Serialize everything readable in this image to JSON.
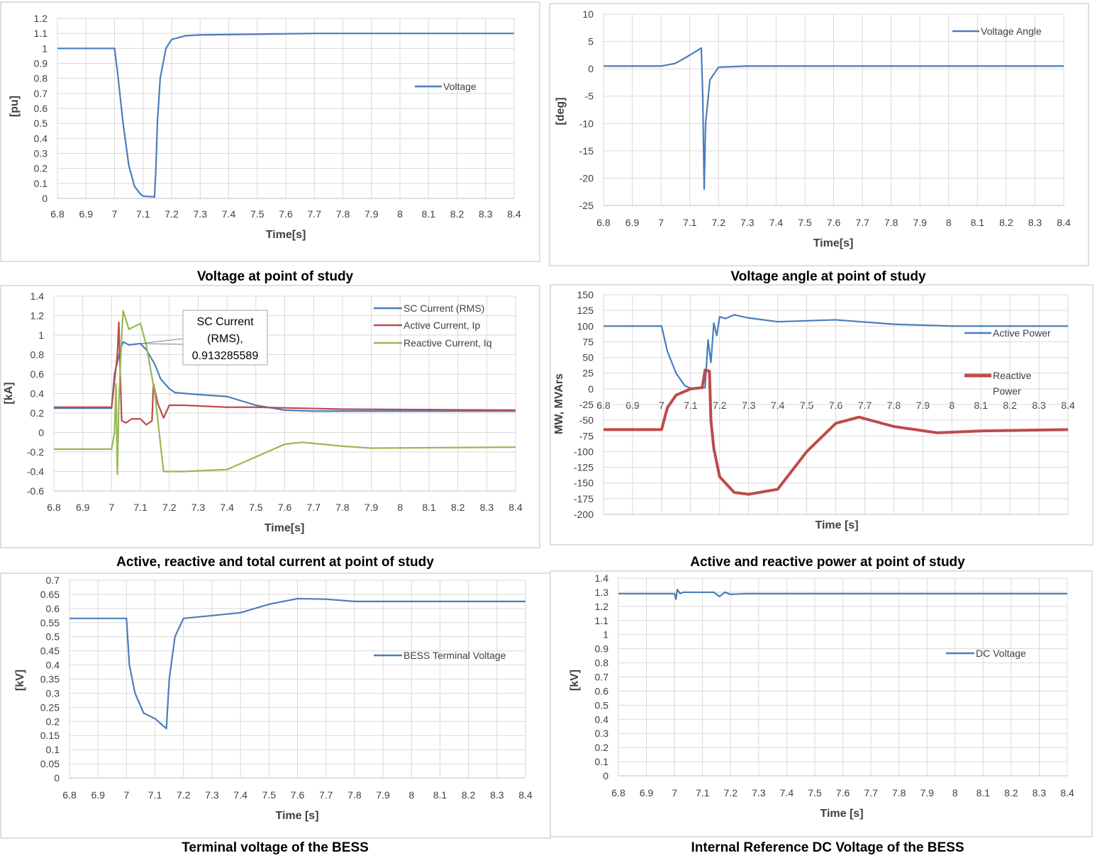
{
  "colors": {
    "blue": "#4a7ebb",
    "red": "#be4b48",
    "green": "#98b954",
    "grid": "#d9d9d9"
  },
  "chart_data": [
    {
      "type": "line",
      "caption": "Voltage at point of study",
      "xlabel": "Time[s]",
      "ylabel": "[pu]",
      "xlim": [
        6.8,
        8.4
      ],
      "xstep": 0.1,
      "ylim": [
        0,
        1.2
      ],
      "ystep": 0.1,
      "grid": true,
      "legend": "right",
      "series": [
        {
          "name": "Voltage",
          "color": "#4a7ebb",
          "points": [
            [
              6.8,
              1
            ],
            [
              7.0,
              1
            ],
            [
              7.01,
              0.85
            ],
            [
              7.03,
              0.5
            ],
            [
              7.05,
              0.22
            ],
            [
              7.07,
              0.08
            ],
            [
              7.09,
              0.03
            ],
            [
              7.1,
              0.015
            ],
            [
              7.14,
              0.01
            ],
            [
              7.145,
              0.2
            ],
            [
              7.15,
              0.5
            ],
            [
              7.16,
              0.8
            ],
            [
              7.18,
              1.0
            ],
            [
              7.2,
              1.06
            ],
            [
              7.25,
              1.085
            ],
            [
              7.3,
              1.09
            ],
            [
              7.5,
              1.095
            ],
            [
              7.7,
              1.1
            ],
            [
              8.4,
              1.1
            ]
          ]
        }
      ]
    },
    {
      "type": "line",
      "caption": "Voltage angle at point of study",
      "xlabel": "Time[s]",
      "ylabel": "[deg]",
      "xlim": [
        6.8,
        8.4
      ],
      "xstep": 0.1,
      "ylim": [
        -25,
        10
      ],
      "ystep": 5,
      "grid": true,
      "legend": "top-right",
      "series": [
        {
          "name": "Voltage Angle",
          "color": "#4a7ebb",
          "points": [
            [
              6.8,
              0.5
            ],
            [
              7.0,
              0.5
            ],
            [
              7.05,
              1
            ],
            [
              7.1,
              2.5
            ],
            [
              7.14,
              3.8
            ],
            [
              7.145,
              -5
            ],
            [
              7.15,
              -22
            ],
            [
              7.155,
              -10
            ],
            [
              7.17,
              -2
            ],
            [
              7.2,
              0.3
            ],
            [
              7.3,
              0.5
            ],
            [
              8.4,
              0.5
            ]
          ]
        }
      ]
    },
    {
      "type": "line",
      "caption": "Active, reactive and total current at point of study",
      "xlabel": "Time[s]",
      "ylabel": "[kA]",
      "xlim": [
        6.8,
        8.4
      ],
      "xstep": 0.1,
      "ylim": [
        -0.6,
        1.4
      ],
      "ystep": 0.2,
      "grid": true,
      "legend": "top-right",
      "annotation": {
        "lines": [
          "SC Current",
          "(RMS),",
          "0.913285589"
        ],
        "x": 7.1,
        "y": 0.913285589
      },
      "series": [
        {
          "name": "SC Current (RMS)",
          "color": "#4a7ebb",
          "points": [
            [
              6.8,
              0.25
            ],
            [
              7.0,
              0.25
            ],
            [
              7.01,
              0.6
            ],
            [
              7.03,
              0.85
            ],
            [
              7.04,
              0.93
            ],
            [
              7.06,
              0.9
            ],
            [
              7.1,
              0.913
            ],
            [
              7.12,
              0.85
            ],
            [
              7.15,
              0.7
            ],
            [
              7.17,
              0.55
            ],
            [
              7.2,
              0.45
            ],
            [
              7.22,
              0.41
            ],
            [
              7.3,
              0.39
            ],
            [
              7.4,
              0.37
            ],
            [
              7.5,
              0.28
            ],
            [
              7.6,
              0.23
            ],
            [
              7.7,
              0.22
            ],
            [
              8.4,
              0.22
            ]
          ]
        },
        {
          "name": "Active Current, Ip",
          "color": "#be4b48",
          "points": [
            [
              6.8,
              0.26
            ],
            [
              7.0,
              0.26
            ],
            [
              7.02,
              0.8
            ],
            [
              7.025,
              1.13
            ],
            [
              7.03,
              0.6
            ],
            [
              7.035,
              0.12
            ],
            [
              7.05,
              0.1
            ],
            [
              7.07,
              0.14
            ],
            [
              7.1,
              0.14
            ],
            [
              7.12,
              0.08
            ],
            [
              7.14,
              0.12
            ],
            [
              7.145,
              0.5
            ],
            [
              7.16,
              0.3
            ],
            [
              7.18,
              0.15
            ],
            [
              7.2,
              0.28
            ],
            [
              7.25,
              0.28
            ],
            [
              7.4,
              0.26
            ],
            [
              7.5,
              0.26
            ],
            [
              7.8,
              0.24
            ],
            [
              8.4,
              0.23
            ]
          ]
        },
        {
          "name": "Reactive Current, Iq",
          "color": "#98b954",
          "points": [
            [
              6.8,
              -0.17
            ],
            [
              7.0,
              -0.17
            ],
            [
              7.01,
              0
            ],
            [
              7.015,
              0.5
            ],
            [
              7.02,
              -0.43
            ],
            [
              7.025,
              0.3
            ],
            [
              7.035,
              1.0
            ],
            [
              7.04,
              1.25
            ],
            [
              7.06,
              1.06
            ],
            [
              7.1,
              1.12
            ],
            [
              7.12,
              0.9
            ],
            [
              7.15,
              0.4
            ],
            [
              7.18,
              -0.4
            ],
            [
              7.25,
              -0.4
            ],
            [
              7.4,
              -0.38
            ],
            [
              7.5,
              -0.25
            ],
            [
              7.6,
              -0.12
            ],
            [
              7.66,
              -0.1
            ],
            [
              7.8,
              -0.14
            ],
            [
              7.9,
              -0.16
            ],
            [
              8.4,
              -0.15
            ]
          ]
        }
      ]
    },
    {
      "type": "line",
      "caption": "Active and reactive power at point of study",
      "xlabel": "Time [s]",
      "ylabel": "MW, MVArs",
      "xlim": [
        6.8,
        8.4
      ],
      "xstep": 0.1,
      "ylim": [
        -200,
        150
      ],
      "ystep": 25,
      "grid": true,
      "legend": "right",
      "series": [
        {
          "name": "Active Power",
          "color": "#4a7ebb",
          "points": [
            [
              6.8,
              100
            ],
            [
              7.0,
              100
            ],
            [
              7.02,
              60
            ],
            [
              7.05,
              25
            ],
            [
              7.08,
              5
            ],
            [
              7.1,
              1
            ],
            [
              7.15,
              2
            ],
            [
              7.16,
              78
            ],
            [
              7.17,
              42
            ],
            [
              7.18,
              105
            ],
            [
              7.19,
              85
            ],
            [
              7.2,
              115
            ],
            [
              7.22,
              112
            ],
            [
              7.25,
              118
            ],
            [
              7.3,
              113
            ],
            [
              7.4,
              107
            ],
            [
              7.6,
              110
            ],
            [
              7.8,
              103
            ],
            [
              8.0,
              100
            ],
            [
              8.4,
              100
            ]
          ]
        },
        {
          "name": "Reactive Power",
          "color": "#be4b48",
          "points": [
            [
              6.8,
              -65
            ],
            [
              7.0,
              -65
            ],
            [
              7.02,
              -30
            ],
            [
              7.05,
              -10
            ],
            [
              7.1,
              0
            ],
            [
              7.14,
              2
            ],
            [
              7.15,
              30
            ],
            [
              7.165,
              28
            ],
            [
              7.17,
              -50
            ],
            [
              7.18,
              -95
            ],
            [
              7.2,
              -140
            ],
            [
              7.25,
              -165
            ],
            [
              7.3,
              -168
            ],
            [
              7.4,
              -160
            ],
            [
              7.5,
              -100
            ],
            [
              7.6,
              -55
            ],
            [
              7.68,
              -45
            ],
            [
              7.8,
              -60
            ],
            [
              7.95,
              -70
            ],
            [
              8.1,
              -67
            ],
            [
              8.4,
              -65
            ]
          ]
        }
      ]
    },
    {
      "type": "line",
      "caption": "Terminal voltage of the BESS",
      "xlabel": "Time [s]",
      "ylabel": "[kV]",
      "xlim": [
        6.8,
        8.4
      ],
      "xstep": 0.1,
      "ylim": [
        0,
        0.7
      ],
      "ystep": 0.05,
      "grid": true,
      "legend": "right",
      "series": [
        {
          "name": "BESS Terminal Voltage",
          "color": "#4a7ebb",
          "points": [
            [
              6.8,
              0.565
            ],
            [
              7.0,
              0.565
            ],
            [
              7.01,
              0.4
            ],
            [
              7.03,
              0.3
            ],
            [
              7.06,
              0.23
            ],
            [
              7.1,
              0.21
            ],
            [
              7.14,
              0.175
            ],
            [
              7.15,
              0.35
            ],
            [
              7.17,
              0.5
            ],
            [
              7.2,
              0.565
            ],
            [
              7.3,
              0.575
            ],
            [
              7.4,
              0.585
            ],
            [
              7.5,
              0.615
            ],
            [
              7.6,
              0.635
            ],
            [
              7.7,
              0.633
            ],
            [
              7.8,
              0.625
            ],
            [
              8.4,
              0.625
            ]
          ]
        }
      ]
    },
    {
      "type": "line",
      "caption": "Internal Reference DC Voltage of the BESS",
      "xlabel": "Time [s]",
      "ylabel": "[kV]",
      "xlim": [
        6.8,
        8.4
      ],
      "xstep": 0.1,
      "ylim": [
        0,
        1.4
      ],
      "ystep": 0.1,
      "grid": true,
      "legend": "right",
      "series": [
        {
          "name": "DC Voltage",
          "color": "#4a7ebb",
          "points": [
            [
              6.8,
              1.29
            ],
            [
              7.0,
              1.29
            ],
            [
              7.005,
              1.25
            ],
            [
              7.01,
              1.32
            ],
            [
              7.02,
              1.29
            ],
            [
              7.03,
              1.3
            ],
            [
              7.14,
              1.3
            ],
            [
              7.16,
              1.27
            ],
            [
              7.18,
              1.3
            ],
            [
              7.2,
              1.285
            ],
            [
              7.25,
              1.29
            ],
            [
              8.4,
              1.29
            ]
          ]
        }
      ]
    }
  ]
}
